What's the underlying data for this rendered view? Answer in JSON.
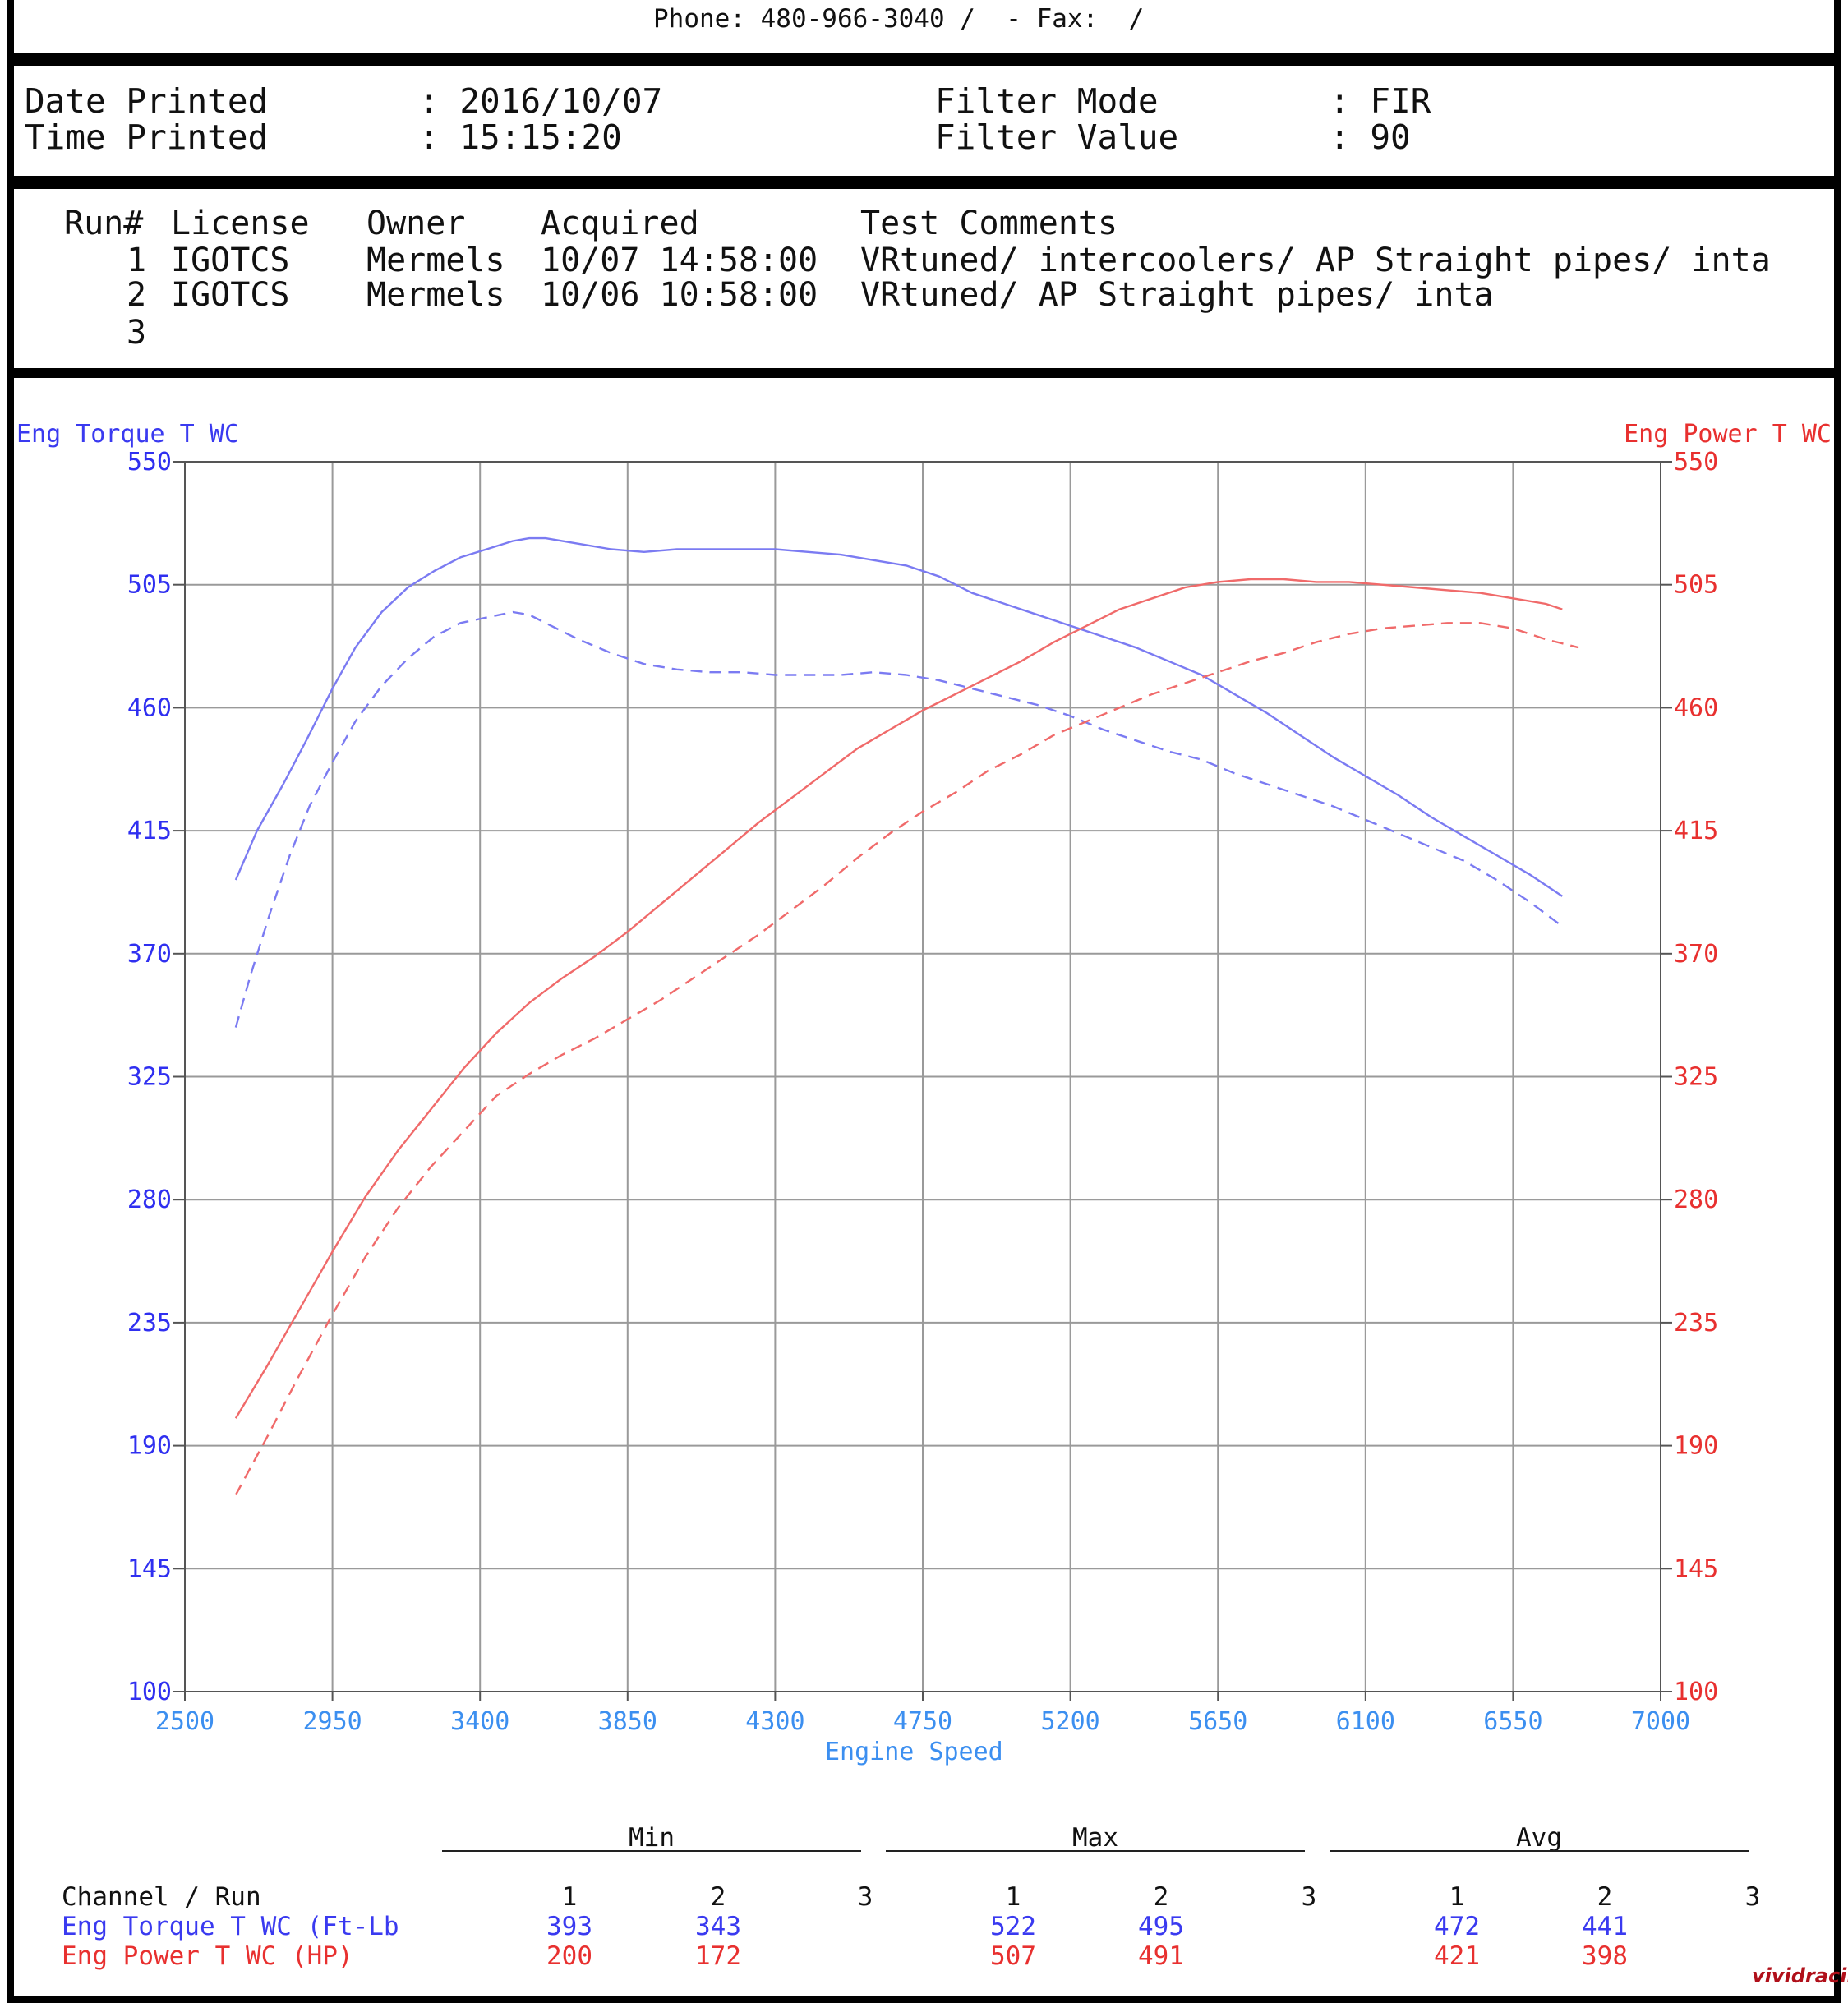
{
  "header": {
    "contact_line": "Phone: 480-966-3040 /  - Fax:  /"
  },
  "info": {
    "date_label": "Date Printed",
    "date_value": ": 2016/10/07",
    "time_label": "Time Printed",
    "time_value": ": 15:15:20",
    "filter_mode_label": "Filter Mode",
    "filter_mode_value": ": FIR",
    "filter_value_label": "Filter Value",
    "filter_value_value": ": 90"
  },
  "runs": {
    "headers": {
      "run": "Run#",
      "license": "License",
      "owner": "Owner",
      "acquired": "Acquired",
      "comments": "Test Comments"
    },
    "rows": [
      {
        "run": "1",
        "license": "IGOTCS",
        "owner": "Mermels",
        "acquired": "10/07 14:58:00",
        "comments": "VRtuned/ intercoolers/ AP Straight pipes/ inta"
      },
      {
        "run": "2",
        "license": "IGOTCS",
        "owner": "Mermels",
        "acquired": "10/06 10:58:00",
        "comments": "VRtuned/ AP Straight pipes/ inta"
      },
      {
        "run": "3",
        "license": "",
        "owner": "",
        "acquired": "",
        "comments": ""
      }
    ]
  },
  "chart_data": {
    "type": "line",
    "xlabel": "Engine Speed",
    "ylabel_left": "Eng Torque T WC",
    "ylabel_right": "Eng Power T WC",
    "xlim": [
      2500,
      7000
    ],
    "ylim_left": [
      100,
      550
    ],
    "ylim_right": [
      100,
      550
    ],
    "x_ticks": [
      "2500",
      "2950",
      "3400",
      "3850",
      "4300",
      "4750",
      "5200",
      "5650",
      "6100",
      "6550",
      "7000"
    ],
    "y_ticks": [
      "550",
      "505",
      "460",
      "415",
      "370",
      "325",
      "280",
      "235",
      "190",
      "145",
      "100"
    ],
    "grid": true,
    "colors": {
      "torque": "#7070f0",
      "power": "#f06a6a",
      "left_axis": "#2f2ff0",
      "right_axis": "#e8302f",
      "x_axis": "#3c8ff0"
    },
    "series": [
      {
        "name": "Eng Torque T WC",
        "run": "1",
        "axis": "left",
        "dashed": false,
        "color": "#7b7bf2",
        "x": [
          2655,
          2720,
          2800,
          2870,
          2950,
          3020,
          3100,
          3180,
          3260,
          3340,
          3420,
          3500,
          3550,
          3600,
          3700,
          3800,
          3900,
          4000,
          4100,
          4200,
          4300,
          4400,
          4500,
          4600,
          4700,
          4800,
          4900,
          5000,
          5100,
          5200,
          5300,
          5400,
          5500,
          5600,
          5700,
          5800,
          5900,
          6000,
          6100,
          6200,
          6300,
          6400,
          6500,
          6600,
          6700
        ],
        "y": [
          397,
          415,
          432,
          448,
          467,
          482,
          495,
          504,
          510,
          515,
          518,
          521,
          522,
          522,
          520,
          518,
          517,
          518,
          518,
          518,
          518,
          517,
          516,
          514,
          512,
          508,
          502,
          498,
          494,
          490,
          486,
          482,
          477,
          472,
          465,
          458,
          450,
          442,
          435,
          428,
          420,
          413,
          406,
          399,
          391
        ]
      },
      {
        "name": "Eng Torque T WC",
        "run": "2",
        "axis": "left",
        "dashed": true,
        "color": "#7b7bf2",
        "x": [
          2655,
          2700,
          2760,
          2820,
          2880,
          2950,
          3020,
          3100,
          3180,
          3260,
          3340,
          3420,
          3500,
          3550,
          3600,
          3700,
          3800,
          3900,
          4000,
          4100,
          4200,
          4300,
          4400,
          4500,
          4600,
          4700,
          4800,
          4900,
          5000,
          5100,
          5200,
          5300,
          5400,
          5500,
          5600,
          5700,
          5800,
          5900,
          6000,
          6100,
          6200,
          6300,
          6400,
          6500,
          6600,
          6700
        ],
        "y": [
          343,
          362,
          385,
          406,
          424,
          440,
          455,
          468,
          478,
          486,
          491,
          493,
          495,
          494,
          491,
          485,
          480,
          476,
          474,
          473,
          473,
          472,
          472,
          472,
          473,
          472,
          470,
          467,
          464,
          461,
          457,
          452,
          448,
          444,
          441,
          436,
          432,
          428,
          424,
          419,
          414,
          409,
          404,
          397,
          389,
          380
        ]
      },
      {
        "name": "Eng Power T WC",
        "run": "1",
        "axis": "right",
        "dashed": false,
        "color": "#f06a6a",
        "x": [
          2655,
          2750,
          2850,
          2950,
          3050,
          3150,
          3250,
          3350,
          3450,
          3550,
          3650,
          3750,
          3850,
          3950,
          4050,
          4150,
          4250,
          4350,
          4450,
          4550,
          4650,
          4750,
          4850,
          4950,
          5050,
          5150,
          5250,
          5350,
          5450,
          5550,
          5650,
          5750,
          5850,
          5950,
          6050,
          6150,
          6250,
          6350,
          6450,
          6550,
          6650,
          6700
        ],
        "y": [
          200,
          219,
          240,
          261,
          281,
          298,
          313,
          328,
          341,
          352,
          361,
          369,
          378,
          388,
          398,
          408,
          418,
          427,
          436,
          445,
          452,
          459,
          465,
          471,
          477,
          484,
          490,
          496,
          500,
          504,
          506,
          507,
          507,
          506,
          506,
          505,
          504,
          503,
          502,
          500,
          498,
          496
        ]
      },
      {
        "name": "Eng Power T WC",
        "run": "2",
        "axis": "right",
        "dashed": true,
        "color": "#f06a6a",
        "x": [
          2655,
          2750,
          2850,
          2950,
          3050,
          3150,
          3250,
          3350,
          3450,
          3550,
          3650,
          3750,
          3850,
          3950,
          4050,
          4150,
          4250,
          4350,
          4450,
          4550,
          4650,
          4750,
          4850,
          4950,
          5050,
          5150,
          5250,
          5350,
          5450,
          5550,
          5650,
          5750,
          5850,
          5950,
          6050,
          6150,
          6250,
          6350,
          6450,
          6550,
          6650,
          6750
        ],
        "y": [
          172,
          193,
          216,
          238,
          259,
          277,
          292,
          305,
          318,
          326,
          333,
          339,
          346,
          353,
          361,
          369,
          377,
          386,
          395,
          405,
          414,
          422,
          429,
          437,
          443,
          450,
          455,
          460,
          465,
          469,
          473,
          477,
          480,
          484,
          487,
          489,
          490,
          491,
          491,
          489,
          485,
          482
        ]
      }
    ]
  },
  "stats": {
    "groups": [
      "Min",
      "Max",
      "Avg"
    ],
    "channel_header": "Channel / Run",
    "run_labels": [
      "1",
      "2",
      "3"
    ],
    "rows": [
      {
        "channel": "Eng Torque T WC (Ft-Lb",
        "min": [
          "393",
          "343",
          ""
        ],
        "max": [
          "522",
          "495",
          ""
        ],
        "avg": [
          "472",
          "441",
          ""
        ]
      },
      {
        "channel": "Eng Power T WC (HP)",
        "min": [
          "200",
          "172",
          ""
        ],
        "max": [
          "507",
          "491",
          ""
        ],
        "avg": [
          "421",
          "398",
          ""
        ]
      }
    ]
  },
  "watermark": "vividracing"
}
